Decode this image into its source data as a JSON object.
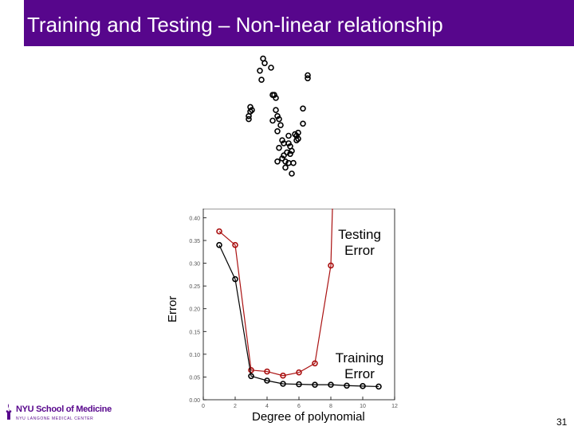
{
  "slide": {
    "title": "Training and Testing – Non-linear relationship",
    "page_number": "31",
    "logo_name": "NYU School of Medicine",
    "logo_subtext": "NYU LANGONE MEDICAL CENTER",
    "testing_label_1": "Testing",
    "testing_label_2": "Error",
    "training_label_1": "Training",
    "training_label_2": "Error",
    "colors": {
      "header": "#57068c",
      "testing": "#aa1111",
      "training": "#000000"
    }
  },
  "chart_data": [
    {
      "type": "scatter",
      "title": "",
      "xlabel": "",
      "ylabel": "",
      "points": [
        [
          0.3,
          0.04
        ],
        [
          0.31,
          0.07
        ],
        [
          0.28,
          0.12
        ],
        [
          0.29,
          0.18
        ],
        [
          0.35,
          0.1
        ],
        [
          0.36,
          0.28
        ],
        [
          0.37,
          0.28
        ],
        [
          0.38,
          0.3
        ],
        [
          0.38,
          0.38
        ],
        [
          0.36,
          0.45
        ],
        [
          0.39,
          0.42
        ],
        [
          0.4,
          0.44
        ],
        [
          0.41,
          0.48
        ],
        [
          0.39,
          0.52
        ],
        [
          0.42,
          0.58
        ],
        [
          0.43,
          0.6
        ],
        [
          0.42,
          0.7
        ],
        [
          0.43,
          0.68
        ],
        [
          0.44,
          0.72
        ],
        [
          0.44,
          0.76
        ],
        [
          0.45,
          0.66
        ],
        [
          0.46,
          0.6
        ],
        [
          0.46,
          0.55
        ],
        [
          0.47,
          0.67
        ],
        [
          0.46,
          0.73
        ],
        [
          0.4,
          0.63
        ],
        [
          0.39,
          0.72
        ],
        [
          0.48,
          0.8
        ],
        [
          0.48,
          0.65
        ],
        [
          0.47,
          0.62
        ],
        [
          0.49,
          0.73
        ],
        [
          0.5,
          0.54
        ],
        [
          0.51,
          0.55
        ],
        [
          0.52,
          0.53
        ],
        [
          0.52,
          0.57
        ],
        [
          0.51,
          0.58
        ],
        [
          0.55,
          0.37
        ],
        [
          0.55,
          0.47
        ],
        [
          0.58,
          0.15
        ],
        [
          0.58,
          0.17
        ],
        [
          0.22,
          0.39
        ],
        [
          0.21,
          0.42
        ],
        [
          0.21,
          0.44
        ],
        [
          0.22,
          0.36
        ],
        [
          0.23,
          0.38
        ]
      ]
    },
    {
      "type": "line",
      "title": "",
      "xlabel": "Degree of polynomial",
      "ylabel": "Error",
      "xlim": [
        0,
        12
      ],
      "ylim": [
        0,
        0.42
      ],
      "xticks": [
        0,
        2,
        4,
        6,
        8,
        10,
        12
      ],
      "yticks": [
        0.0,
        0.05,
        0.1,
        0.15,
        0.2,
        0.25,
        0.3,
        0.35,
        0.4
      ],
      "xtick_labels": [
        "0",
        "2",
        "4",
        "6",
        "8",
        "10",
        "12"
      ],
      "ytick_labels": [
        "0.00",
        "0.05",
        "0.10",
        "0.15",
        "0.20",
        "0.25",
        "0.30",
        "0.35",
        "0.40"
      ],
      "series": [
        {
          "name": "Testing Error",
          "color": "#aa1111",
          "x": [
            1,
            2,
            3,
            4,
            5,
            6,
            7,
            8,
            8.1
          ],
          "y": [
            0.37,
            0.34,
            0.065,
            0.062,
            0.053,
            0.06,
            0.08,
            0.295,
            0.42
          ]
        },
        {
          "name": "Training Error",
          "color": "#000000",
          "x": [
            1,
            2,
            3,
            4,
            5,
            6,
            7,
            8,
            9,
            10,
            11
          ],
          "y": [
            0.34,
            0.265,
            0.052,
            0.042,
            0.035,
            0.034,
            0.033,
            0.033,
            0.031,
            0.03,
            0.029
          ]
        }
      ]
    }
  ]
}
